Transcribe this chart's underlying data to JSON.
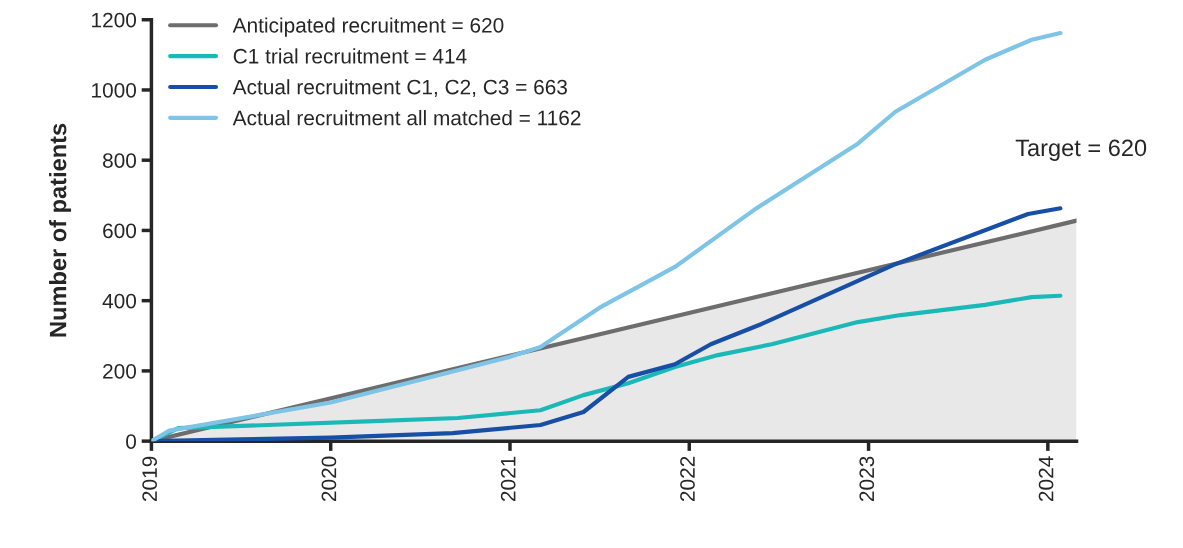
{
  "chart_data": {
    "type": "line",
    "ylabel": "Number of patients",
    "series": [
      {
        "name": "Anticipated recruitment = 620",
        "type": "area",
        "color": "#6d6d6d",
        "x": [
          2019,
          2024.16
        ],
        "values": [
          0,
          628
        ]
      },
      {
        "name": "C1 trial recruitment = 414",
        "color": "#1bb8b8",
        "x": [
          2019,
          2019.15,
          2019.65,
          2020.24,
          2020.71,
          2021.17,
          2021.41,
          2021.66,
          2021.92,
          2022.16,
          2022.46,
          2022.94,
          2023.18,
          2023.65,
          2023.91,
          2024.07
        ],
        "values": [
          0,
          37,
          46,
          57,
          66,
          88,
          131,
          165,
          211,
          245,
          276,
          339,
          359,
          388,
          410,
          414
        ]
      },
      {
        "name": "Actual recruitment C1, C2, C3 = 663",
        "color": "#174ea6",
        "x": [
          2019,
          2019.5,
          2020,
          2020.68,
          2021.17,
          2021.41,
          2021.66,
          2021.92,
          2022.12,
          2022.4,
          2023.14,
          2023.89,
          2024.07
        ],
        "values": [
          0,
          5,
          10,
          23,
          46,
          83,
          183,
          219,
          276,
          333,
          502,
          647,
          663
        ]
      },
      {
        "name": "Actual recruitment all matched = 1162",
        "color": "#7ec4e6",
        "x": [
          2019,
          2019.1,
          2020,
          2020.5,
          2021,
          2021.17,
          2021.5,
          2021.92,
          2022.36,
          2022.94,
          2023.15,
          2023.65,
          2023.91,
          2024.07
        ],
        "values": [
          0,
          30,
          110,
          175,
          240,
          268,
          380,
          496,
          658,
          847,
          938,
          1086,
          1143,
          1162
        ]
      }
    ],
    "xlim": [
      2019,
      2024.16
    ],
    "xticks": [
      2019,
      2020,
      2021,
      2022,
      2023,
      2024
    ],
    "ylim": [
      0,
      1200
    ],
    "yticks": [
      0,
      200,
      400,
      600,
      800,
      1000,
      1200
    ],
    "annotations": [
      "Target = 620"
    ],
    "legend": "top left",
    "grid": false
  }
}
